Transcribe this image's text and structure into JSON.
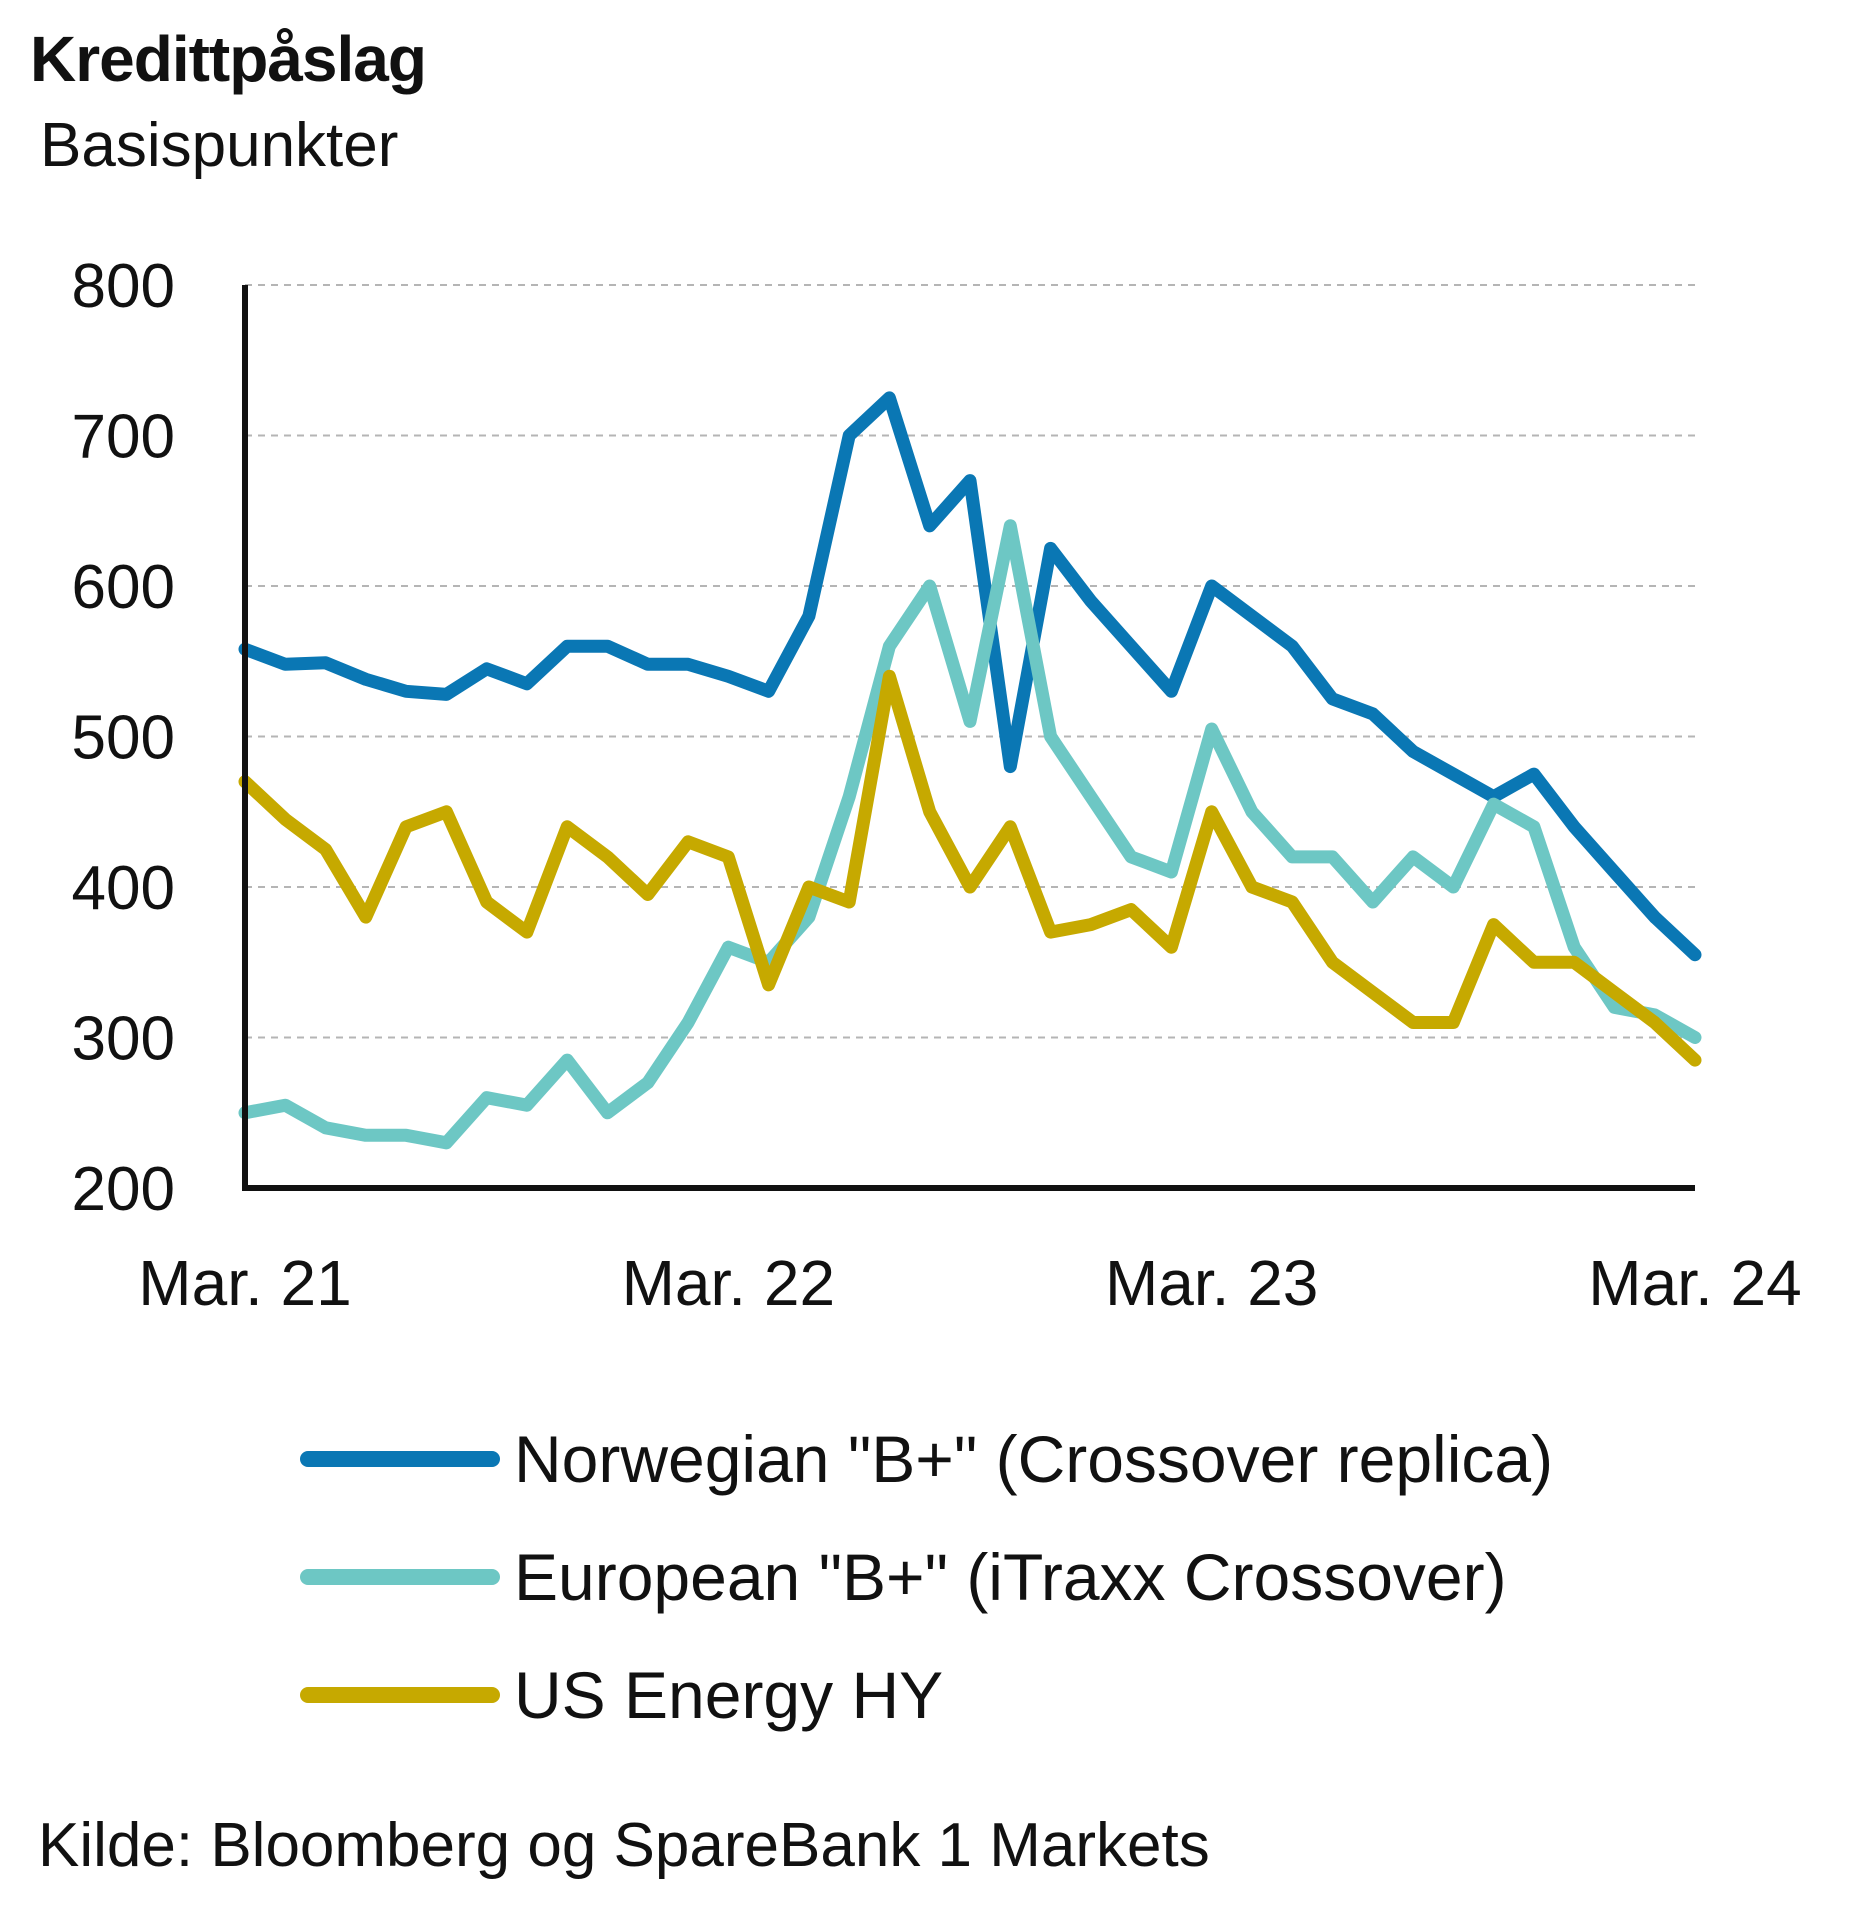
{
  "header": {
    "title": "Kredittpåslag",
    "subtitle": "Basispunkter"
  },
  "source": "Kilde: Bloomberg og SpareBank 1 Markets",
  "chart_data": {
    "type": "line",
    "title": "Kredittpåslag",
    "ylabel": "Basispunkter",
    "xlabel": "",
    "ylim": [
      200,
      800
    ],
    "yticks": [
      200,
      300,
      400,
      500,
      600,
      700,
      800
    ],
    "xlim": [
      "2021-03",
      "2024-03"
    ],
    "xticks": [
      {
        "label": "Mar. 21",
        "value": "2021-03"
      },
      {
        "label": "Mar. 22",
        "value": "2022-03"
      },
      {
        "label": "Mar. 23",
        "value": "2023-03"
      },
      {
        "label": "Mar. 24",
        "value": "2024-03"
      }
    ],
    "grid": "horizontal dashed",
    "legend_position": "bottom",
    "x": [
      "2021-03",
      "2021-04",
      "2021-05",
      "2021-06",
      "2021-07",
      "2021-08",
      "2021-09",
      "2021-10",
      "2021-11",
      "2021-12",
      "2022-01",
      "2022-02",
      "2022-03",
      "2022-04",
      "2022-05",
      "2022-06",
      "2022-07",
      "2022-08",
      "2022-09",
      "2022-10",
      "2022-11",
      "2022-12",
      "2023-01",
      "2023-02",
      "2023-03",
      "2023-04",
      "2023-05",
      "2023-06",
      "2023-07",
      "2023-08",
      "2023-09",
      "2023-10",
      "2023-11",
      "2023-12",
      "2024-01",
      "2024-02",
      "2024-03"
    ],
    "series": [
      {
        "name": "Norwegian \"B+\" (Crossover replica)",
        "color": "#0a77b4",
        "values": [
          558,
          548,
          549,
          538,
          530,
          528,
          545,
          535,
          560,
          560,
          548,
          548,
          540,
          530,
          580,
          700,
          725,
          640,
          670,
          480,
          625,
          590,
          560,
          530,
          600,
          580,
          560,
          525,
          515,
          490,
          475,
          460,
          475,
          440,
          410,
          380,
          355
        ]
      },
      {
        "name": "European \"B+\" (iTraxx Crossover)",
        "color": "#6dc7c4",
        "values": [
          250,
          255,
          240,
          235,
          235,
          230,
          260,
          255,
          285,
          250,
          270,
          310,
          360,
          350,
          380,
          460,
          560,
          600,
          510,
          640,
          500,
          460,
          420,
          410,
          505,
          450,
          420,
          420,
          390,
          420,
          400,
          455,
          440,
          360,
          320,
          315,
          300
        ]
      },
      {
        "name": "US Energy HY",
        "color": "#c6a900",
        "values": [
          470,
          445,
          425,
          380,
          440,
          450,
          390,
          370,
          440,
          420,
          395,
          430,
          420,
          335,
          400,
          390,
          540,
          450,
          400,
          440,
          370,
          375,
          385,
          360,
          450,
          400,
          390,
          350,
          330,
          310,
          310,
          375,
          350,
          350,
          330,
          310,
          285
        ]
      }
    ]
  }
}
